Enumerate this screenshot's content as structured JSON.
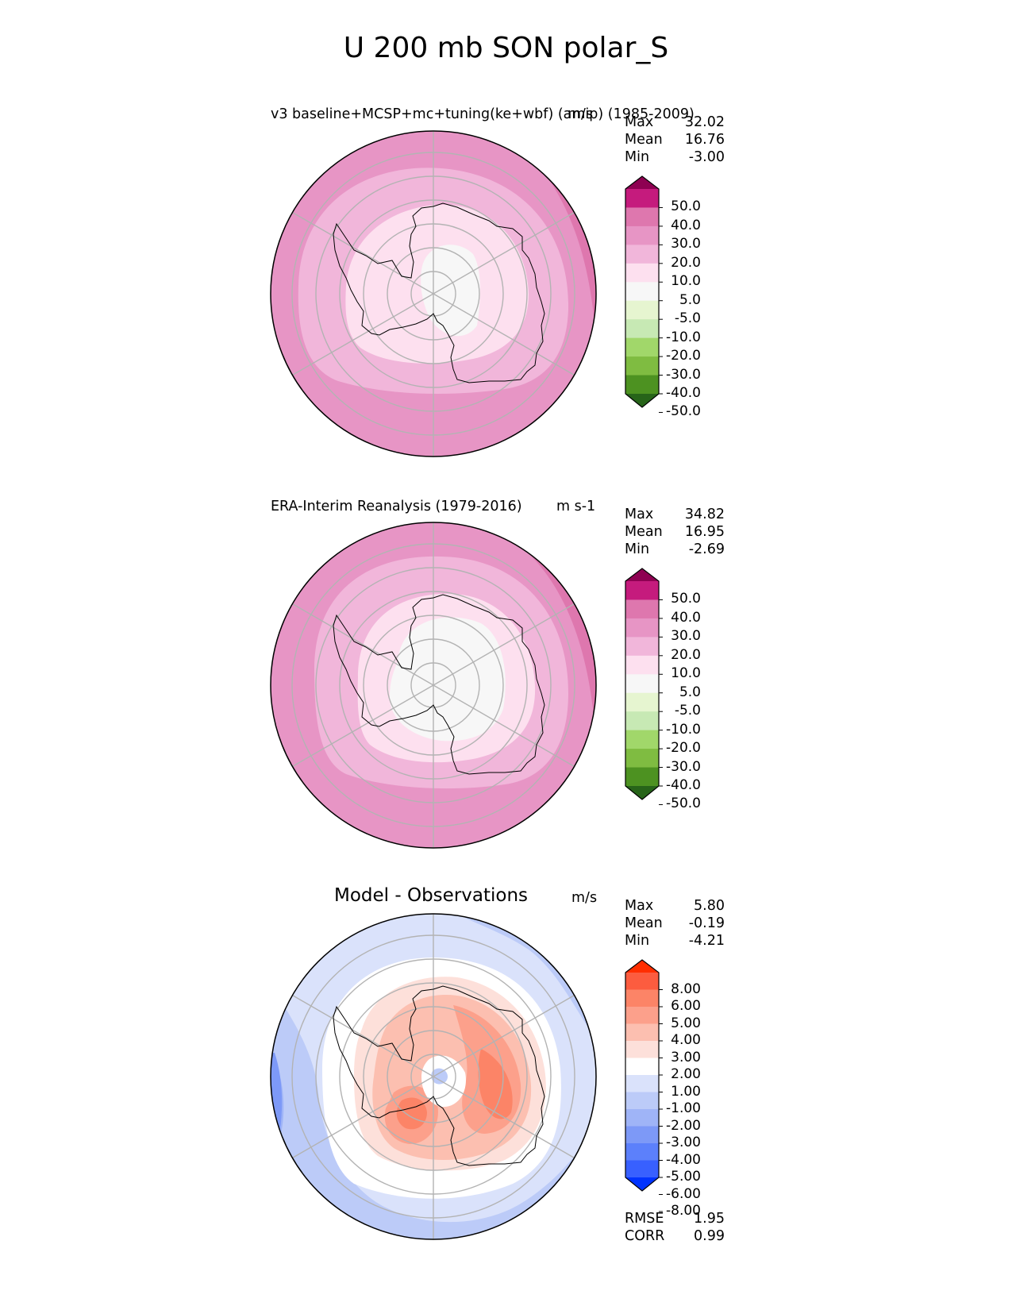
{
  "figure_title": "U 200 mb SON polar_S",
  "colors": {
    "pink_scale": [
      "#276419",
      "#4d9221",
      "#7fbc41",
      "#a1d76a",
      "#c7e9b4",
      "#e6f5d0",
      "#f7f7f7",
      "#fde0ef",
      "#f1b6da",
      "#e795c5",
      "#de77ae",
      "#c51b7d",
      "#8e0152"
    ],
    "diff_scale": [
      "#0033ff",
      "#3860ff",
      "#5c80fb",
      "#7d99f7",
      "#9fb4f7",
      "#bccbf8",
      "#dae2fb",
      "#ffffff",
      "#fde0da",
      "#fcbfb0",
      "#fca08b",
      "#fc8467",
      "#fc5c3f",
      "#ff2e00"
    ],
    "grid": "#b3b3b3",
    "coast": "#000000"
  },
  "panels": [
    {
      "id": "test",
      "title": "v3 baseline+MCSP+mc+tuning(ke+wbf) (amip) (1985-2009)",
      "units": "m/s",
      "stats": [
        {
          "label": "Max",
          "value": "32.02"
        },
        {
          "label": "Mean",
          "value": "16.76"
        },
        {
          "label": "Min",
          "value": "-3.00"
        }
      ],
      "colorbar_labels": [
        "50.0",
        "40.0",
        "30.0",
        "20.0",
        "10.0",
        "5.0",
        "-5.0",
        "-10.0",
        "-20.0",
        "-30.0",
        "-40.0",
        "-50.0"
      ]
    },
    {
      "id": "reference",
      "title": "ERA-Interim Reanalysis (1979-2016)",
      "units": "m s-1",
      "stats": [
        {
          "label": "Max",
          "value": "34.82"
        },
        {
          "label": "Mean",
          "value": "16.95"
        },
        {
          "label": "Min",
          "value": "-2.69"
        }
      ],
      "colorbar_labels": [
        "50.0",
        "40.0",
        "30.0",
        "20.0",
        "10.0",
        "5.0",
        "-5.0",
        "-10.0",
        "-20.0",
        "-30.0",
        "-40.0",
        "-50.0"
      ]
    },
    {
      "id": "diff",
      "title": "Model - Observations",
      "units": "m/s",
      "stats": [
        {
          "label": "Max",
          "value": "5.80"
        },
        {
          "label": "Mean",
          "value": "-0.19"
        },
        {
          "label": "Min",
          "value": "-4.21"
        }
      ],
      "colorbar_labels": [
        "8.00",
        "6.00",
        "5.00",
        "4.00",
        "3.00",
        "2.00",
        "1.00",
        "-1.00",
        "-2.00",
        "-3.00",
        "-4.00",
        "-5.00",
        "-6.00",
        "-8.00"
      ],
      "metrics": [
        {
          "label": "RMSE",
          "value": "1.95"
        },
        {
          "label": "CORR",
          "value": "0.99"
        }
      ]
    }
  ],
  "chart_data": {
    "type": "heatmap",
    "title": "U 200 mb SON polar_S",
    "variable": "U",
    "level": "200 mb",
    "season": "SON",
    "region": "polar_S",
    "projection": "south polar stereographic",
    "contour_levels": [
      -50,
      -40,
      -30,
      -20,
      -10,
      -5,
      5,
      10,
      20,
      30,
      40,
      50
    ],
    "diff_contour_levels": [
      -8,
      -6,
      -5,
      -4,
      -3,
      -2,
      -1,
      1,
      2,
      3,
      4,
      5,
      6,
      8
    ],
    "panels": [
      {
        "name": "v3 baseline+MCSP+mc+tuning(ke+wbf) (amip) (1985-2009)",
        "units": "m/s",
        "max": 32.02,
        "mean": 16.76,
        "min": -3.0
      },
      {
        "name": "ERA-Interim Reanalysis (1979-2016)",
        "units": "m s-1",
        "max": 34.82,
        "mean": 16.95,
        "min": -2.69
      },
      {
        "name": "Model - Observations",
        "units": "m/s",
        "max": 5.8,
        "mean": -0.19,
        "min": -4.21,
        "rmse": 1.95,
        "corr": 0.99
      }
    ]
  }
}
